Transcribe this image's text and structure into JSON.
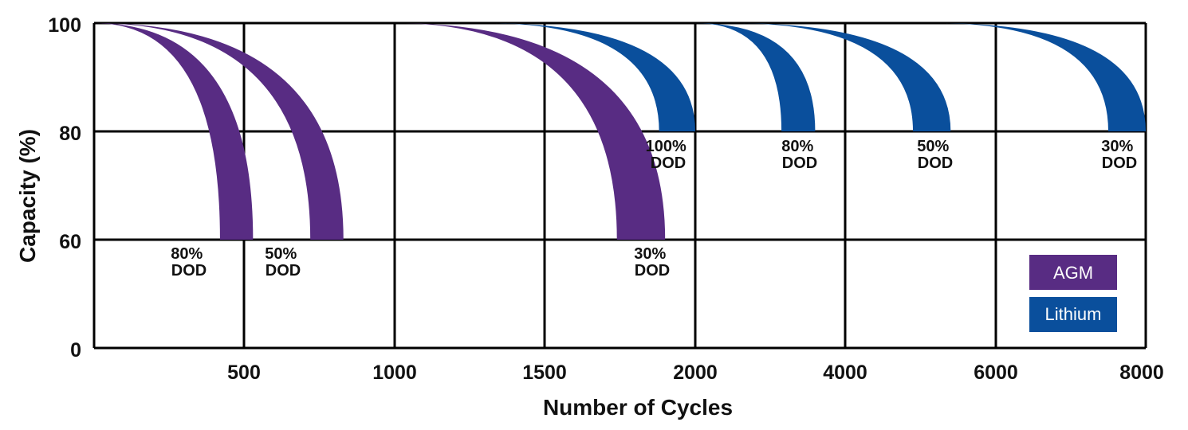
{
  "chart_data": {
    "type": "area",
    "title": "",
    "xlabel": "Number of Cycles",
    "ylabel": "Capacity (%)",
    "x_ticks": [
      "500",
      "1000",
      "1500",
      "2000",
      "4000",
      "6000",
      "8000"
    ],
    "y_ticks": [
      "100",
      "80",
      "60",
      "0"
    ],
    "ylim": [
      0,
      100
    ],
    "grid": true,
    "legend_position": "bottom-right",
    "legend": [
      {
        "label": "AGM",
        "color": "#582c83"
      },
      {
        "label": "Lithium",
        "color": "#0a4f9c"
      }
    ],
    "series": [
      {
        "name": "AGM",
        "dod_label": [
          "80%",
          "DOD"
        ],
        "start_cycles": 0,
        "end_capacity": 60,
        "end_cycles_range": [
          420,
          530
        ]
      },
      {
        "name": "AGM",
        "dod_label": [
          "50%",
          "DOD"
        ],
        "start_cycles": 0,
        "end_capacity": 60,
        "end_cycles_range": [
          720,
          830
        ]
      },
      {
        "name": "AGM",
        "dod_label": [
          "30%",
          "DOD"
        ],
        "start_cycles": 1000,
        "end_capacity": 60,
        "end_cycles_range": [
          1740,
          1900
        ]
      },
      {
        "name": "Lithium",
        "dod_label": [
          "100%",
          "DOD"
        ],
        "start_cycles": 1300,
        "end_capacity": 80,
        "end_cycles_range": [
          1880,
          2000
        ]
      },
      {
        "name": "Lithium",
        "dod_label": [
          "80%",
          "DOD"
        ],
        "start_cycles": 2000,
        "end_capacity": 80,
        "end_cycles_range": [
          3150,
          3600
        ]
      },
      {
        "name": "Lithium",
        "dod_label": [
          "50%",
          "DOD"
        ],
        "start_cycles": 2500,
        "end_capacity": 80,
        "end_cycles_range": [
          4900,
          5400
        ]
      },
      {
        "name": "Lithium",
        "dod_label": [
          "30%",
          "DOD"
        ],
        "start_cycles": 5200,
        "end_capacity": 80,
        "end_cycles_range": [
          7500,
          8000
        ]
      }
    ]
  }
}
